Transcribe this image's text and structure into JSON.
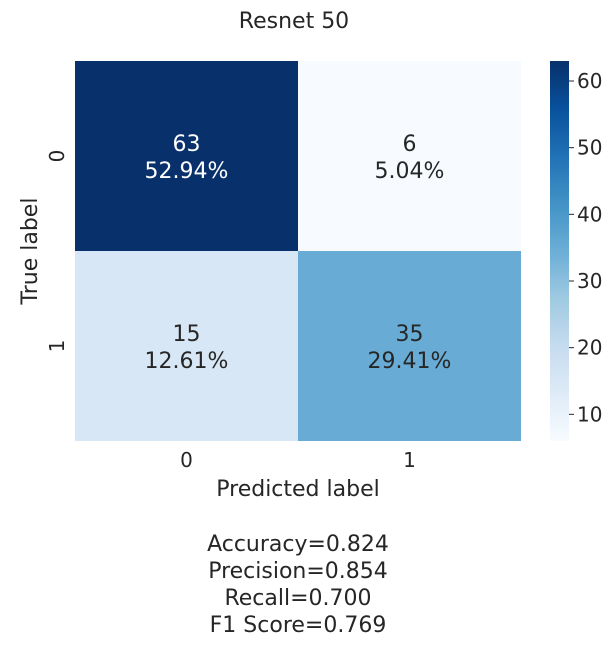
{
  "chart_data": {
    "type": "heatmap",
    "title": "Resnet 50",
    "xlabel": "Predicted label",
    "ylabel": "True label",
    "x_categories": [
      "0",
      "1"
    ],
    "y_categories": [
      "0",
      "1"
    ],
    "values": [
      [
        63,
        6
      ],
      [
        15,
        35
      ]
    ],
    "percentages": [
      [
        "52.94%",
        "5.04%"
      ],
      [
        "12.61%",
        "29.41%"
      ]
    ],
    "colormap": "Blues",
    "colorbar": {
      "range": [
        6,
        63
      ],
      "ticks": [
        10,
        20,
        30,
        40,
        50,
        60
      ],
      "low_color": "#f7fbff",
      "high_color": "#08306b"
    },
    "metrics": [
      "Accuracy=0.824",
      "Precision=0.854",
      "Recall=0.700",
      "F1 Score=0.769"
    ]
  }
}
